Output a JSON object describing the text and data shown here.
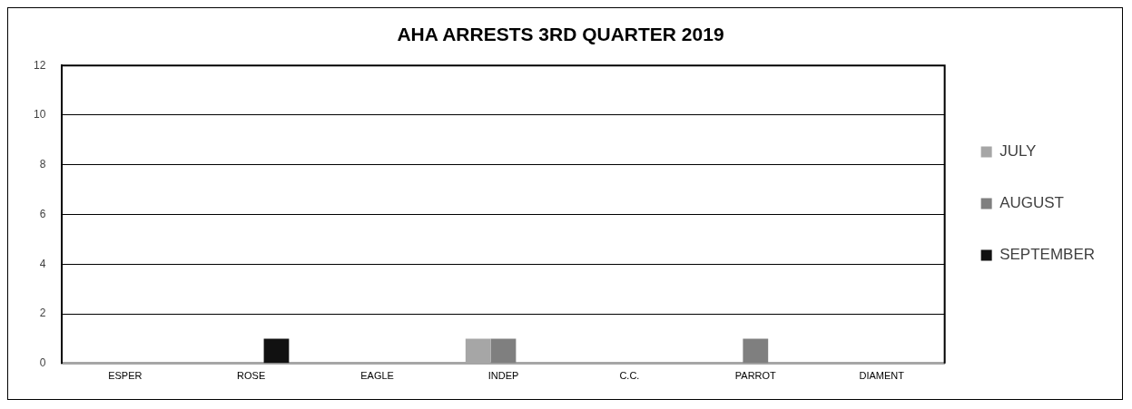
{
  "chart_data": {
    "type": "bar",
    "title": "AHA ARRESTS 3RD QUARTER 2019",
    "categories": [
      "ESPER",
      "ROSE",
      "EAGLE",
      "INDEP",
      "C.C.",
      "PARROT",
      "DIAMENT"
    ],
    "series": [
      {
        "name": "JULY",
        "color": "#a6a6a6",
        "values": [
          0,
          0,
          0,
          1,
          0,
          0,
          0
        ]
      },
      {
        "name": "AUGUST",
        "color": "#7f7f7f",
        "values": [
          0,
          0,
          0,
          1,
          0,
          1,
          0
        ]
      },
      {
        "name": "SEPTEMBER",
        "color": "#111111",
        "values": [
          0,
          1,
          0,
          0,
          0,
          0,
          0
        ]
      }
    ],
    "ylim": [
      0,
      12
    ],
    "yticks": [
      0,
      2,
      4,
      6,
      8,
      10,
      12
    ],
    "grid": "y",
    "legend": "right"
  }
}
